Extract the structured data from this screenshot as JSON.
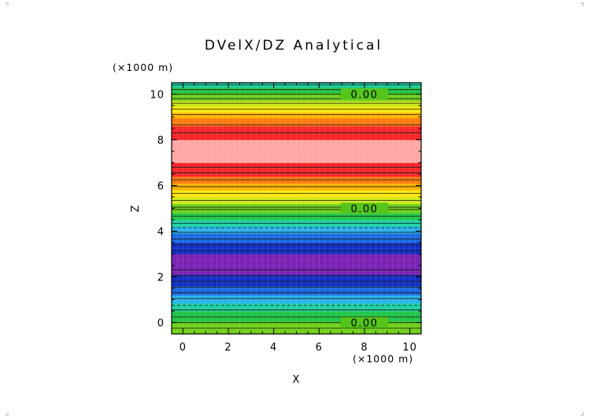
{
  "chart_data": {
    "type": "heatmap",
    "title": "DVelX/DZ Analytical",
    "xlabel": "X",
    "ylabel": "Z",
    "x_unit": "(×1000 m)",
    "y_unit": "(×1000 m)",
    "xlim": [
      -0.5,
      10.5
    ],
    "ylim": [
      -0.5,
      10.5
    ],
    "x_ticks": [
      "0",
      "2",
      "4",
      "6",
      "8",
      "10"
    ],
    "y_ticks": [
      "0",
      "2",
      "4",
      "6",
      "8",
      "10"
    ],
    "grid": false,
    "variation_direction": "z",
    "bands": [
      {
        "z0": -0.5,
        "z1": -0.05,
        "color": "#72d11c"
      },
      {
        "z0": -0.05,
        "z1": 0.05,
        "color": "#55c41b"
      },
      {
        "z0": 0.05,
        "z1": 0.5,
        "color": "#22c64a"
      },
      {
        "z0": 0.5,
        "z1": 0.85,
        "color": "#1fd0a4"
      },
      {
        "z0": 0.85,
        "z1": 1.2,
        "color": "#2bb4ee"
      },
      {
        "z0": 1.2,
        "z1": 1.6,
        "color": "#1c68e0"
      },
      {
        "z0": 1.6,
        "z1": 2.1,
        "color": "#1230c6"
      },
      {
        "z0": 2.1,
        "z1": 3.0,
        "color": "#7a22b4"
      },
      {
        "z0": 3.0,
        "z1": 3.5,
        "color": "#1230c6"
      },
      {
        "z0": 3.5,
        "z1": 3.9,
        "color": "#1c68e0"
      },
      {
        "z0": 3.9,
        "z1": 4.2,
        "color": "#2bb4ee"
      },
      {
        "z0": 4.2,
        "z1": 4.5,
        "color": "#1fd0a4"
      },
      {
        "z0": 4.5,
        "z1": 4.8,
        "color": "#22c64a"
      },
      {
        "z0": 4.8,
        "z1": 5.2,
        "color": "#72d11c"
      },
      {
        "z0": 5.2,
        "z1": 5.5,
        "color": "#cfe81a"
      },
      {
        "z0": 5.5,
        "z1": 5.8,
        "color": "#ffe60a"
      },
      {
        "z0": 5.8,
        "z1": 6.1,
        "color": "#ffb400"
      },
      {
        "z0": 6.1,
        "z1": 6.4,
        "color": "#ff7a12"
      },
      {
        "z0": 6.4,
        "z1": 7.0,
        "color": "#f7262a"
      },
      {
        "z0": 7.0,
        "z1": 8.0,
        "color": "#ffa8a4"
      },
      {
        "z0": 8.0,
        "z1": 8.6,
        "color": "#f7262a"
      },
      {
        "z0": 8.6,
        "z1": 8.95,
        "color": "#ff7a12"
      },
      {
        "z0": 8.95,
        "z1": 9.2,
        "color": "#ffb400"
      },
      {
        "z0": 9.2,
        "z1": 9.45,
        "color": "#ffe60a"
      },
      {
        "z0": 9.45,
        "z1": 9.7,
        "color": "#cfe81a"
      },
      {
        "z0": 9.7,
        "z1": 9.95,
        "color": "#72d11c"
      },
      {
        "z0": 9.95,
        "z1": 10.05,
        "color": "#55c41b"
      },
      {
        "z0": 10.05,
        "z1": 10.3,
        "color": "#22c64a"
      },
      {
        "z0": 10.3,
        "z1": 10.5,
        "color": "#1fd0a4"
      }
    ],
    "contours": {
      "solid": [
        -0.25,
        0.0,
        0.25,
        0.55,
        1.05,
        1.3,
        1.55,
        1.8,
        2.05,
        2.3,
        3.15,
        3.4,
        3.65,
        3.95,
        4.35,
        4.65,
        4.95,
        5.05,
        5.35,
        5.65,
        5.95,
        6.25,
        6.55,
        6.8,
        8.3,
        8.65,
        9.1,
        9.35,
        9.6,
        9.8,
        10.0,
        10.2,
        10.4
      ],
      "dashed": [
        0.75,
        4.15
      ]
    },
    "contour_labels": [
      {
        "text": "0.00",
        "x": 8.0,
        "z": 10.0
      },
      {
        "text": "0.00",
        "x": 8.0,
        "z": 5.0
      },
      {
        "text": "0.00",
        "x": 8.0,
        "z": 0.0
      }
    ]
  }
}
